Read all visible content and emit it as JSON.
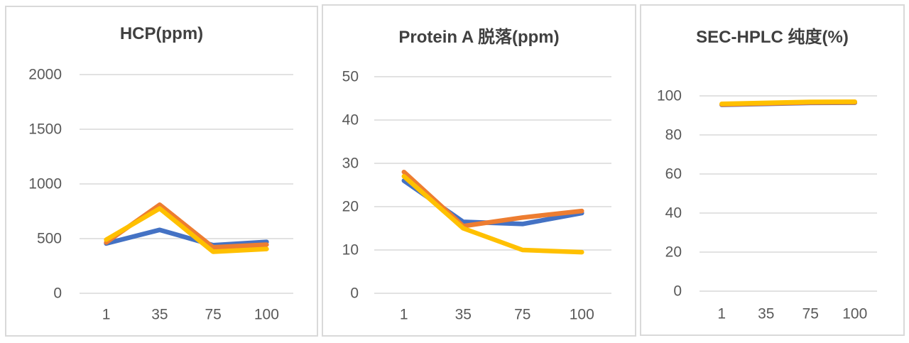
{
  "page": {
    "background": "#ffffff",
    "panel_border_color": "#d9d9d9",
    "gridline_color": "#d9d9d9",
    "tick_label_color": "#595959",
    "title_color": "#404040"
  },
  "chart_data": [
    {
      "type": "line",
      "title": "HCP(ppm)",
      "xlabel": "",
      "ylabel": "",
      "categories": [
        "1",
        "35",
        "75",
        "100"
      ],
      "ylim": [
        0,
        2000
      ],
      "yticks": [
        2000,
        1500,
        1000,
        500,
        0
      ],
      "grid": true,
      "legend": "none",
      "series": [
        {
          "name": "blue",
          "color": "#4472C4",
          "values": [
            455,
            580,
            440,
            470
          ]
        },
        {
          "name": "orange",
          "color": "#ED7D31",
          "values": [
            465,
            810,
            420,
            445
          ]
        },
        {
          "name": "yellow",
          "color": "#FFC000",
          "values": [
            490,
            775,
            380,
            405
          ]
        }
      ]
    },
    {
      "type": "line",
      "title": "Protein A 脱落(ppm)",
      "xlabel": "",
      "ylabel": "",
      "categories": [
        "1",
        "35",
        "75",
        "100"
      ],
      "ylim": [
        0,
        50
      ],
      "yticks": [
        50,
        40,
        30,
        20,
        10,
        0
      ],
      "grid": true,
      "legend": "none",
      "series": [
        {
          "name": "blue",
          "color": "#4472C4",
          "values": [
            26,
            16.5,
            16,
            18.5
          ]
        },
        {
          "name": "orange",
          "color": "#ED7D31",
          "values": [
            28,
            15.5,
            17.5,
            19
          ]
        },
        {
          "name": "yellow",
          "color": "#FFC000",
          "values": [
            27,
            15,
            10,
            9.5
          ]
        }
      ]
    },
    {
      "type": "line",
      "title": "SEC-HPLC 纯度(%)",
      "xlabel": "",
      "ylabel": "",
      "categories": [
        "1",
        "35",
        "75",
        "100"
      ],
      "ylim": [
        0,
        100
      ],
      "yticks": [
        100,
        80,
        60,
        40,
        20,
        0
      ],
      "grid": true,
      "legend": "none",
      "series": [
        {
          "name": "blue",
          "color": "#4472C4",
          "values": [
            95.4,
            95.9,
            96.4,
            96.5
          ]
        },
        {
          "name": "orange",
          "color": "#ED7D31",
          "values": [
            95.6,
            96.1,
            96.6,
            96.7
          ]
        },
        {
          "name": "yellow",
          "color": "#FFC000",
          "values": [
            95.9,
            96.4,
            96.9,
            97.0
          ]
        }
      ]
    }
  ]
}
